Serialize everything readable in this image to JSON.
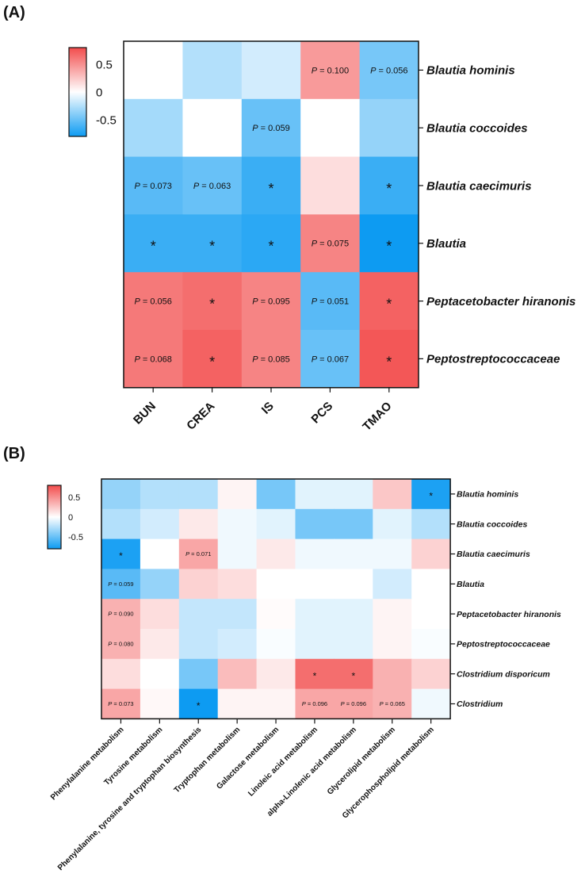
{
  "chart_data": [
    {
      "panel": "(A)",
      "type": "heatmap",
      "columns": [
        "BUN",
        "CREA",
        "IS",
        "PCS",
        "TMAO"
      ],
      "rows": [
        "Blautia hominis",
        "Blautia coccoides",
        "Blautia caecimuris",
        "Blautia",
        "Peptacetobacter hiranonis",
        "Peptostreptococcaceae"
      ],
      "values": [
        [
          0.0,
          -0.25,
          -0.15,
          0.45,
          -0.45
        ],
        [
          -0.3,
          0.0,
          -0.5,
          0.0,
          -0.35
        ],
        [
          -0.55,
          -0.5,
          -0.65,
          0.15,
          -0.65
        ],
        [
          -0.65,
          -0.65,
          -0.7,
          0.55,
          -0.8
        ],
        [
          0.6,
          0.65,
          0.55,
          -0.55,
          0.7
        ],
        [
          0.6,
          0.7,
          0.55,
          -0.5,
          0.75
        ]
      ],
      "annotations": [
        [
          "",
          "",
          "",
          "P = 0.100",
          "P = 0.056"
        ],
        [
          "",
          "",
          "P = 0.059",
          "",
          ""
        ],
        [
          "P = 0.073",
          "P = 0.063",
          "*",
          "",
          "*"
        ],
        [
          "*",
          "*",
          "*",
          "P = 0.075",
          "*"
        ],
        [
          "P = 0.056",
          "*",
          "P = 0.095",
          "P = 0.051",
          "*"
        ],
        [
          "P = 0.068",
          "*",
          "P = 0.085",
          "P = 0.067",
          "*"
        ]
      ],
      "colorbar": {
        "ticks": [
          "0.5",
          "0",
          "-0.5"
        ],
        "range": [
          -0.8,
          0.8
        ]
      }
    },
    {
      "panel": "(B)",
      "type": "heatmap",
      "columns": [
        "Phenylalanine metabolism",
        "Tyrosine metabolism",
        "Phenylalanine, tyrosine and tryptophan biosynthesis",
        "Tryptophan metabolism",
        "Galactose metabolism",
        "Linoleic acid metabolism",
        "alpha-Linolenic acid metabolism",
        "Glycerolipid metabolism",
        "Glycerophospholipid metabolism"
      ],
      "rows": [
        "Blautia hominis",
        "Blautia coccoides",
        "Blautia caecimuris",
        "Blautia",
        "Peptacetobacter hiranonis",
        "Peptostreptococcaceae",
        "Clostridium disporicum",
        "Clostridium"
      ],
      "values": [
        [
          -0.35,
          -0.25,
          -0.25,
          0.05,
          -0.45,
          -0.1,
          -0.1,
          0.25,
          -0.75
        ],
        [
          -0.25,
          -0.15,
          0.1,
          -0.05,
          -0.1,
          -0.45,
          -0.45,
          -0.1,
          -0.25
        ],
        [
          -0.75,
          0.0,
          0.4,
          -0.05,
          0.1,
          -0.05,
          -0.05,
          -0.05,
          0.2
        ],
        [
          -0.55,
          -0.35,
          0.2,
          0.15,
          0.0,
          0.0,
          0.0,
          -0.15,
          0.0
        ],
        [
          0.35,
          0.15,
          -0.2,
          -0.2,
          0.02,
          -0.1,
          -0.1,
          0.05,
          0.0
        ],
        [
          0.35,
          0.1,
          -0.2,
          -0.15,
          -0.02,
          -0.1,
          -0.1,
          0.05,
          -0.02
        ],
        [
          0.15,
          0.0,
          -0.45,
          0.3,
          0.1,
          0.65,
          0.65,
          0.35,
          0.2
        ],
        [
          0.4,
          0.03,
          -0.8,
          0.05,
          0.05,
          0.4,
          0.4,
          0.35,
          -0.05
        ]
      ],
      "annotations": [
        [
          "",
          "",
          "",
          "",
          "",
          "",
          "",
          "",
          "*"
        ],
        [
          "",
          "",
          "",
          "",
          "",
          "",
          "",
          "",
          ""
        ],
        [
          "*",
          "",
          "P = 0.071",
          "",
          "",
          "",
          "",
          "",
          ""
        ],
        [
          "P = 0.059",
          "",
          "",
          "",
          "",
          "",
          "",
          "",
          ""
        ],
        [
          "P = 0.090",
          "",
          "",
          "",
          "",
          "",
          "",
          "",
          ""
        ],
        [
          "P = 0.080",
          "",
          "",
          "",
          "",
          "",
          "",
          "",
          ""
        ],
        [
          "",
          "",
          "",
          "",
          "",
          "*",
          "*",
          "",
          ""
        ],
        [
          "P = 0.073",
          "",
          "*",
          "",
          "",
          "P = 0.096",
          "P = 0.096",
          "P = 0.065",
          ""
        ]
      ],
      "colorbar": {
        "ticks": [
          "0.5",
          "0",
          "-0.5"
        ],
        "range": [
          -0.8,
          0.8
        ]
      }
    }
  ],
  "colors": {
    "positive": "#f24c4c",
    "neutral": "#ffffff",
    "negative": "#0d9bf2"
  }
}
